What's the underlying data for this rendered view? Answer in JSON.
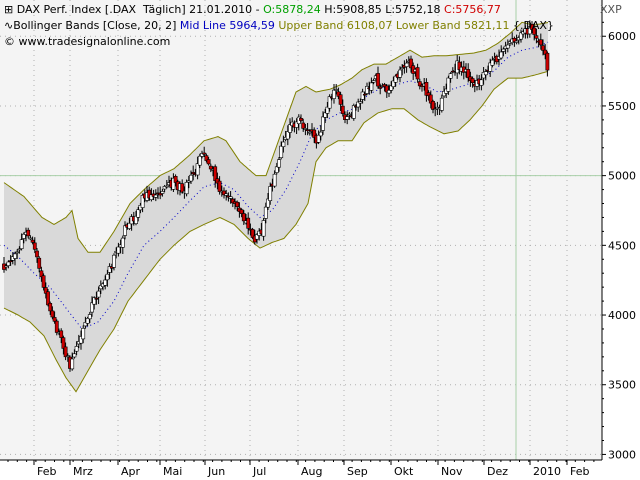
{
  "header": {
    "line1": {
      "prefix": "DAX Perf. Index [.DAX  Täglich] 21.01.2010 - ",
      "open": "O:5878,24",
      "high": " H:5908,85",
      "low": " L:5752,18",
      "close": " C:5756,77"
    },
    "line2": {
      "prefix": "Bollinger Bands [Close, 20, 2] ",
      "mid": "Mid Line 5964,59",
      "bands": " Upper Band 6108,07 Lower Band 5821,11",
      "suffix": " {.DAX}"
    },
    "line3": "© www.tradesignalonline.com",
    "axis_label": "XXP"
  },
  "colors": {
    "up_candle": "#ffffff",
    "down_candle": "#cc0000",
    "band_line": "#808000",
    "band_fill": "#d9d9d9",
    "mid_line": "#0000cc",
    "grid": "#b0b0b0",
    "hline": "#a8d0a8"
  },
  "chart_data": {
    "type": "candlestick",
    "instrument": "DAX Perf. Index",
    "y_ticks": [
      3000,
      3500,
      4000,
      4500,
      5000,
      5500,
      6000
    ],
    "y_tick_labels": [
      "3000",
      "3500",
      "4000",
      "4500",
      "5000",
      "5500",
      "6000"
    ],
    "ylim": [
      2960,
      6260
    ],
    "x_months": [
      "Feb",
      "Mrz",
      "Apr",
      "Mai",
      "Jun",
      "Jul",
      "Aug",
      "Sep",
      "Okt",
      "Nov",
      "Dez",
      "2010",
      "Feb"
    ],
    "reference_level": 5000,
    "current_date_marker": "2010",
    "bollinger": {
      "period": 20,
      "stddev": 2,
      "mid": 5964.59,
      "upper": 6108.07,
      "lower": 5821.11
    },
    "last_bar": {
      "open": 5878.24,
      "high": 5908.85,
      "low": 5752.18,
      "close": 5756.77
    },
    "price_path": [
      [
        0,
        4350
      ],
      [
        14,
        4450
      ],
      [
        22,
        4600
      ],
      [
        30,
        4500
      ],
      [
        40,
        4200
      ],
      [
        50,
        3950
      ],
      [
        58,
        3800
      ],
      [
        66,
        3650
      ],
      [
        72,
        3750
      ],
      [
        80,
        3950
      ],
      [
        90,
        4100
      ],
      [
        100,
        4250
      ],
      [
        110,
        4400
      ],
      [
        120,
        4600
      ],
      [
        130,
        4700
      ],
      [
        140,
        4850
      ],
      [
        150,
        4850
      ],
      [
        160,
        4900
      ],
      [
        170,
        4950
      ],
      [
        180,
        4900
      ],
      [
        190,
        5000
      ],
      [
        198,
        5150
      ],
      [
        205,
        5100
      ],
      [
        214,
        4900
      ],
      [
        222,
        4850
      ],
      [
        230,
        4800
      ],
      [
        240,
        4700
      ],
      [
        250,
        4550
      ],
      [
        258,
        4600
      ],
      [
        262,
        4800
      ],
      [
        270,
        5000
      ],
      [
        278,
        5200
      ],
      [
        286,
        5350
      ],
      [
        296,
        5400
      ],
      [
        306,
        5300
      ],
      [
        314,
        5250
      ],
      [
        322,
        5500
      ],
      [
        332,
        5600
      ],
      [
        342,
        5400
      ],
      [
        352,
        5500
      ],
      [
        362,
        5600
      ],
      [
        372,
        5700
      ],
      [
        380,
        5600
      ],
      [
        388,
        5650
      ],
      [
        396,
        5750
      ],
      [
        406,
        5800
      ],
      [
        414,
        5700
      ],
      [
        422,
        5600
      ],
      [
        430,
        5450
      ],
      [
        438,
        5550
      ],
      [
        446,
        5700
      ],
      [
        454,
        5800
      ],
      [
        462,
        5750
      ],
      [
        470,
        5650
      ],
      [
        478,
        5700
      ],
      [
        486,
        5800
      ],
      [
        494,
        5850
      ],
      [
        502,
        5900
      ],
      [
        508,
        5950
      ],
      [
        516,
        6000
      ],
      [
        524,
        6050
      ],
      [
        532,
        5980
      ],
      [
        540,
        5900
      ],
      [
        545,
        5760
      ]
    ],
    "upper_band_path": [
      [
        0,
        4950
      ],
      [
        20,
        4850
      ],
      [
        38,
        4700
      ],
      [
        50,
        4650
      ],
      [
        62,
        4700
      ],
      [
        68,
        4750
      ],
      [
        74,
        4550
      ],
      [
        84,
        4450
      ],
      [
        96,
        4450
      ],
      [
        110,
        4600
      ],
      [
        126,
        4800
      ],
      [
        140,
        4900
      ],
      [
        156,
        5000
      ],
      [
        170,
        5050
      ],
      [
        186,
        5150
      ],
      [
        200,
        5250
      ],
      [
        214,
        5280
      ],
      [
        222,
        5250
      ],
      [
        236,
        5100
      ],
      [
        252,
        5000
      ],
      [
        262,
        5000
      ],
      [
        272,
        5200
      ],
      [
        282,
        5400
      ],
      [
        292,
        5600
      ],
      [
        302,
        5640
      ],
      [
        312,
        5600
      ],
      [
        326,
        5620
      ],
      [
        336,
        5650
      ],
      [
        348,
        5700
      ],
      [
        358,
        5760
      ],
      [
        370,
        5800
      ],
      [
        382,
        5800
      ],
      [
        394,
        5850
      ],
      [
        406,
        5900
      ],
      [
        418,
        5850
      ],
      [
        430,
        5860
      ],
      [
        442,
        5860
      ],
      [
        456,
        5870
      ],
      [
        470,
        5880
      ],
      [
        482,
        5900
      ],
      [
        494,
        5950
      ],
      [
        506,
        6020
      ],
      [
        518,
        6100
      ],
      [
        530,
        6080
      ],
      [
        545,
        6100
      ]
    ],
    "lower_band_path": [
      [
        0,
        4050
      ],
      [
        14,
        4000
      ],
      [
        26,
        3950
      ],
      [
        40,
        3850
      ],
      [
        52,
        3680
      ],
      [
        62,
        3550
      ],
      [
        72,
        3450
      ],
      [
        84,
        3600
      ],
      [
        96,
        3750
      ],
      [
        110,
        3900
      ],
      [
        124,
        4100
      ],
      [
        140,
        4250
      ],
      [
        156,
        4400
      ],
      [
        170,
        4500
      ],
      [
        186,
        4600
      ],
      [
        200,
        4650
      ],
      [
        216,
        4700
      ],
      [
        230,
        4650
      ],
      [
        244,
        4550
      ],
      [
        256,
        4480
      ],
      [
        268,
        4520
      ],
      [
        280,
        4550
      ],
      [
        292,
        4650
      ],
      [
        304,
        4800
      ],
      [
        312,
        5100
      ],
      [
        322,
        5200
      ],
      [
        334,
        5250
      ],
      [
        348,
        5250
      ],
      [
        360,
        5380
      ],
      [
        374,
        5450
      ],
      [
        388,
        5480
      ],
      [
        400,
        5480
      ],
      [
        414,
        5400
      ],
      [
        426,
        5350
      ],
      [
        440,
        5300
      ],
      [
        454,
        5320
      ],
      [
        466,
        5400
      ],
      [
        478,
        5500
      ],
      [
        490,
        5620
      ],
      [
        504,
        5700
      ],
      [
        518,
        5700
      ],
      [
        530,
        5720
      ],
      [
        545,
        5750
      ]
    ],
    "mid_line_path": [
      [
        0,
        4500
      ],
      [
        14,
        4420
      ],
      [
        30,
        4300
      ],
      [
        46,
        4200
      ],
      [
        62,
        4050
      ],
      [
        78,
        3900
      ],
      [
        94,
        3950
      ],
      [
        110,
        4100
      ],
      [
        124,
        4300
      ],
      [
        140,
        4500
      ],
      [
        156,
        4600
      ],
      [
        170,
        4700
      ],
      [
        186,
        4820
      ],
      [
        200,
        4920
      ],
      [
        216,
        4950
      ],
      [
        230,
        4900
      ],
      [
        244,
        4780
      ],
      [
        256,
        4700
      ],
      [
        268,
        4750
      ],
      [
        282,
        4900
      ],
      [
        296,
        5100
      ],
      [
        308,
        5300
      ],
      [
        322,
        5400
      ],
      [
        336,
        5450
      ],
      [
        350,
        5480
      ],
      [
        364,
        5580
      ],
      [
        378,
        5630
      ],
      [
        392,
        5650
      ],
      [
        406,
        5680
      ],
      [
        420,
        5650
      ],
      [
        434,
        5600
      ],
      [
        448,
        5620
      ],
      [
        462,
        5650
      ],
      [
        476,
        5700
      ],
      [
        490,
        5750
      ],
      [
        504,
        5850
      ],
      [
        518,
        5900
      ],
      [
        532,
        5920
      ],
      [
        545,
        5960
      ]
    ]
  }
}
